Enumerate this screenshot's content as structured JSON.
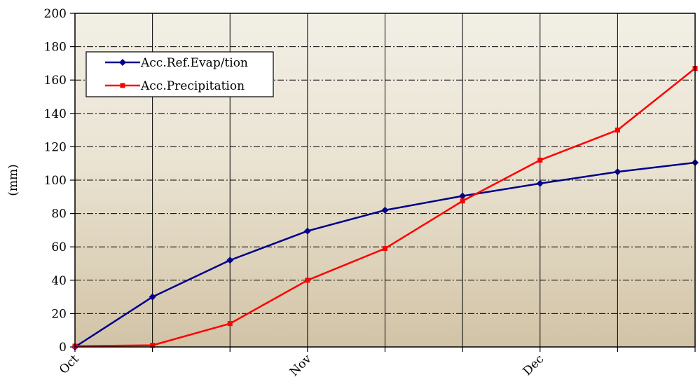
{
  "chart_data": {
    "type": "line",
    "title": "",
    "xlabel": "",
    "ylabel": "(mm)",
    "ylim": [
      0,
      200
    ],
    "yticks": [
      0,
      20,
      40,
      60,
      80,
      100,
      120,
      140,
      160,
      180,
      200
    ],
    "x_tick_labels": [
      {
        "label": "Oct",
        "index": 0
      },
      {
        "label": "Nov",
        "index": 3
      },
      {
        "label": "Dec",
        "index": 6
      }
    ],
    "grid": true,
    "legend_position": "top-left",
    "colors": {
      "evap": "#00008B",
      "precip": "#FF0000",
      "background_top": "#F2EFE6",
      "background_bottom": "#D2C3A6"
    },
    "series": [
      {
        "name": "Acc.Ref.Evap/tion",
        "color": "#00008B",
        "marker": "diamond",
        "values": [
          0,
          30,
          52,
          69.5,
          82,
          90.5,
          98,
          105,
          110.5
        ]
      },
      {
        "name": "Acc.Precipitation",
        "color": "#FF0000",
        "marker": "square",
        "values": [
          0.5,
          1,
          14,
          40,
          59,
          87.5,
          112,
          130,
          167
        ]
      }
    ]
  }
}
